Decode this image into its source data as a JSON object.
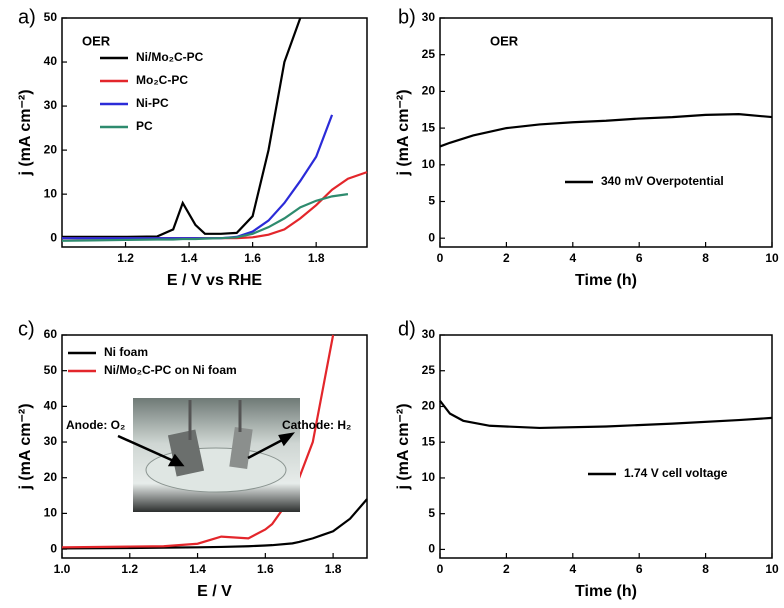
{
  "chart_data": [
    {
      "type": "line",
      "panel_label": "a)",
      "annotation": "OER",
      "x_label": "E / V vs RHE",
      "y_label": "j (mA cm⁻²)",
      "x": [
        1.0,
        1.1,
        1.2,
        1.3,
        1.35,
        1.38,
        1.42,
        1.45,
        1.5,
        1.55,
        1.6,
        1.65,
        1.7,
        1.75,
        1.8,
        1.85,
        1.9,
        1.96
      ],
      "series": [
        {
          "name": "Ni/Mo₂C-PC",
          "color": "#000000",
          "values": [
            0.3,
            0.3,
            0.3,
            0.4,
            2,
            8,
            3,
            1,
            1,
            1.2,
            5,
            20,
            40,
            50,
            null,
            null,
            null,
            null
          ]
        },
        {
          "name": "Mo₂C-PC",
          "color": "#e3262b",
          "values": [
            0,
            0,
            0,
            0,
            0,
            0,
            0,
            0,
            0,
            0,
            0.2,
            0.8,
            2,
            4.5,
            7.5,
            11,
            13.5,
            15
          ]
        },
        {
          "name": "Ni-PC",
          "color": "#2b2bd8",
          "values": [
            0,
            0,
            0,
            0,
            0,
            0,
            0,
            0,
            0,
            0.3,
            1.5,
            4,
            8,
            13,
            18.5,
            28,
            null,
            null
          ]
        },
        {
          "name": "PC",
          "color": "#2e8b6e",
          "values": [
            -0.6,
            -0.5,
            -0.4,
            -0.3,
            -0.3,
            -0.2,
            -0.2,
            -0.1,
            0,
            0.2,
            1,
            2.5,
            4.5,
            7,
            8.5,
            9.5,
            10,
            null
          ]
        }
      ],
      "xlim": [
        1.0,
        1.96
      ],
      "xticks": [
        1.2,
        1.4,
        1.6,
        1.8
      ],
      "ylim": [
        -2,
        50
      ],
      "yticks": [
        0,
        10,
        20,
        30,
        40,
        50
      ]
    },
    {
      "type": "line",
      "panel_label": "b)",
      "annotation": "OER",
      "x_label": "Time (h)",
      "y_label": "j (mA cm⁻²)",
      "x": [
        0,
        0.3,
        1,
        2,
        3,
        4,
        5,
        6,
        7,
        8,
        9,
        10
      ],
      "series": [
        {
          "name": "340 mV Overpotential",
          "color": "#000000",
          "values": [
            12.5,
            13,
            14,
            15,
            15.5,
            15.8,
            16,
            16.3,
            16.5,
            16.8,
            16.9,
            16.5
          ]
        }
      ],
      "xlim": [
        0,
        10
      ],
      "xticks": [
        0,
        2,
        4,
        6,
        8,
        10
      ],
      "ylim": [
        -1.2,
        30
      ],
      "yticks": [
        0,
        5,
        10,
        15,
        20,
        25,
        30
      ]
    },
    {
      "type": "line",
      "panel_label": "c)",
      "annotations": [
        "Anode: O₂",
        "Cathode: H₂"
      ],
      "x_label": "E / V",
      "y_label": "j (mA cm⁻²)",
      "x": [
        1.0,
        1.2,
        1.3,
        1.4,
        1.47,
        1.55,
        1.6,
        1.62,
        1.68,
        1.7,
        1.74,
        1.77,
        1.8,
        1.85,
        1.9
      ],
      "series": [
        {
          "name": "Ni foam",
          "color": "#000000",
          "values": [
            0.2,
            0.3,
            0.4,
            0.5,
            0.6,
            0.8,
            1,
            1.1,
            1.6,
            2,
            3,
            4,
            5,
            8.5,
            14
          ]
        },
        {
          "name": "Ni/Mo₂C-PC on Ni foam",
          "color": "#e3262b",
          "values": [
            0.5,
            0.7,
            0.8,
            1.5,
            3.5,
            3,
            5.5,
            7,
            15,
            20,
            30,
            45,
            60,
            null,
            null
          ]
        }
      ],
      "xlim": [
        1.0,
        1.9
      ],
      "xticks": [
        {
          "value": 1.0,
          "label": "1.0"
        },
        1.2,
        1.4,
        1.6,
        1.8
      ],
      "ylim": [
        -2.5,
        60
      ],
      "yticks": [
        0,
        10,
        20,
        30,
        40,
        50,
        60
      ]
    },
    {
      "type": "line",
      "panel_label": "d)",
      "x_label": "Time (h)",
      "y_label": "j (mA cm⁻²)",
      "x": [
        0,
        0.3,
        0.7,
        1.5,
        3,
        5,
        7,
        9,
        10
      ],
      "series": [
        {
          "name": "1.74 V cell voltage",
          "color": "#000000",
          "values": [
            20.8,
            19,
            18,
            17.3,
            17,
            17.2,
            17.6,
            18.1,
            18.4
          ]
        }
      ],
      "xlim": [
        0,
        10
      ],
      "xticks": [
        0,
        2,
        4,
        6,
        8,
        10
      ],
      "ylim": [
        -1.2,
        30
      ],
      "yticks": [
        0,
        5,
        10,
        15,
        20,
        25,
        30
      ]
    }
  ]
}
